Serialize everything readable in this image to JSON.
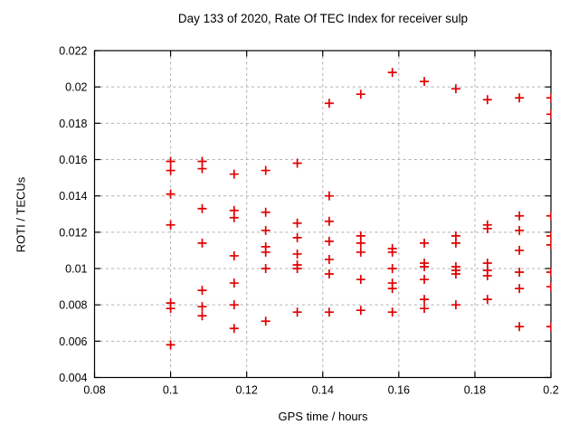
{
  "chart_data": {
    "type": "scatter",
    "title": "Day 133 of 2020, Rate Of TEC Index for receiver sulp",
    "xlabel": "GPS time / hours",
    "ylabel": "ROTI / TECUs",
    "xlim": [
      0.08,
      0.2
    ],
    "ylim": [
      0.004,
      0.022
    ],
    "xticks": [
      0.08,
      0.1,
      0.12,
      0.14,
      0.16,
      0.18,
      0.2
    ],
    "xtick_labels": [
      "0.08",
      "0.1",
      "0.12",
      "0.14",
      "0.16",
      "0.18",
      "0.2"
    ],
    "yticks": [
      0.004,
      0.006,
      0.008,
      0.01,
      0.012,
      0.014,
      0.016,
      0.018,
      0.02,
      0.022
    ],
    "ytick_labels": [
      "0.004",
      "0.006",
      "0.008",
      "0.01",
      "0.012",
      "0.014",
      "0.016",
      "0.018",
      "0.02",
      "0.022"
    ],
    "grid": true,
    "legend": "none",
    "marker": "plus",
    "marker_color": "#e00000",
    "grid_color": "#b0b0b0",
    "border_color": "#000000",
    "series": [
      {
        "name": "ROTI",
        "points": [
          [
            0.1,
            0.0159
          ],
          [
            0.1,
            0.0154
          ],
          [
            0.1,
            0.0141
          ],
          [
            0.1,
            0.0124
          ],
          [
            0.1,
            0.0081
          ],
          [
            0.1,
            0.0078
          ],
          [
            0.1,
            0.0058
          ],
          [
            0.1083,
            0.0159
          ],
          [
            0.1083,
            0.0155
          ],
          [
            0.1083,
            0.0133
          ],
          [
            0.1083,
            0.0114
          ],
          [
            0.1083,
            0.0088
          ],
          [
            0.1083,
            0.0079
          ],
          [
            0.1083,
            0.0074
          ],
          [
            0.1167,
            0.0152
          ],
          [
            0.1167,
            0.0132
          ],
          [
            0.1167,
            0.0128
          ],
          [
            0.1167,
            0.0107
          ],
          [
            0.1167,
            0.0092
          ],
          [
            0.1167,
            0.008
          ],
          [
            0.1167,
            0.0067
          ],
          [
            0.125,
            0.0154
          ],
          [
            0.125,
            0.0131
          ],
          [
            0.125,
            0.0121
          ],
          [
            0.125,
            0.0112
          ],
          [
            0.125,
            0.0109
          ],
          [
            0.125,
            0.01
          ],
          [
            0.125,
            0.0071
          ],
          [
            0.1333,
            0.0158
          ],
          [
            0.1333,
            0.0125
          ],
          [
            0.1333,
            0.0117
          ],
          [
            0.1333,
            0.0108
          ],
          [
            0.1333,
            0.0102
          ],
          [
            0.1333,
            0.01
          ],
          [
            0.1333,
            0.0076
          ],
          [
            0.1417,
            0.0191
          ],
          [
            0.1417,
            0.014
          ],
          [
            0.1417,
            0.0126
          ],
          [
            0.1417,
            0.0115
          ],
          [
            0.1417,
            0.0105
          ],
          [
            0.1417,
            0.0097
          ],
          [
            0.1417,
            0.0076
          ],
          [
            0.15,
            0.0196
          ],
          [
            0.15,
            0.0118
          ],
          [
            0.15,
            0.0114
          ],
          [
            0.15,
            0.0109
          ],
          [
            0.15,
            0.0094
          ],
          [
            0.15,
            0.0077
          ],
          [
            0.1583,
            0.0208
          ],
          [
            0.1583,
            0.0111
          ],
          [
            0.1583,
            0.0109
          ],
          [
            0.1583,
            0.01
          ],
          [
            0.1583,
            0.0092
          ],
          [
            0.1583,
            0.0089
          ],
          [
            0.1583,
            0.0076
          ],
          [
            0.1667,
            0.0203
          ],
          [
            0.1667,
            0.0114
          ],
          [
            0.1667,
            0.0103
          ],
          [
            0.1667,
            0.0101
          ],
          [
            0.1667,
            0.0094
          ],
          [
            0.1667,
            0.0083
          ],
          [
            0.1667,
            0.0078
          ],
          [
            0.175,
            0.0199
          ],
          [
            0.175,
            0.0118
          ],
          [
            0.175,
            0.0114
          ],
          [
            0.175,
            0.0101
          ],
          [
            0.175,
            0.0099
          ],
          [
            0.175,
            0.0097
          ],
          [
            0.175,
            0.008
          ],
          [
            0.1833,
            0.0193
          ],
          [
            0.1833,
            0.0124
          ],
          [
            0.1833,
            0.0122
          ],
          [
            0.1833,
            0.0103
          ],
          [
            0.1833,
            0.0099
          ],
          [
            0.1833,
            0.0096
          ],
          [
            0.1833,
            0.0083
          ],
          [
            0.1917,
            0.0194
          ],
          [
            0.1917,
            0.0129
          ],
          [
            0.1917,
            0.0121
          ],
          [
            0.1917,
            0.011
          ],
          [
            0.1917,
            0.0098
          ],
          [
            0.1917,
            0.0089
          ],
          [
            0.1917,
            0.0068
          ],
          [
            0.2,
            0.0194
          ],
          [
            0.2,
            0.0185
          ],
          [
            0.2,
            0.0129
          ],
          [
            0.2,
            0.0118
          ],
          [
            0.2,
            0.0113
          ],
          [
            0.2,
            0.0098
          ],
          [
            0.2,
            0.009
          ],
          [
            0.2,
            0.0068
          ]
        ]
      }
    ]
  }
}
